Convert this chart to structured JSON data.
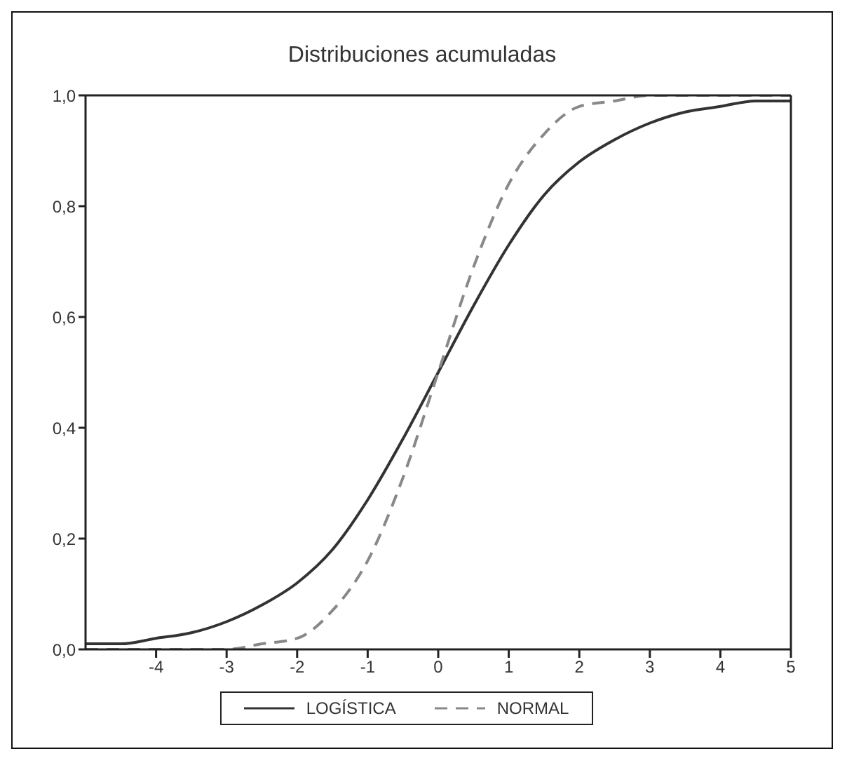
{
  "chart_data": {
    "type": "line",
    "title": "Distribuciones acumuladas",
    "x": [
      -5,
      -4.5,
      -4,
      -3.5,
      -3,
      -2.5,
      -2,
      -1.5,
      -1,
      -0.5,
      0,
      0.5,
      1,
      1.5,
      2,
      2.5,
      3,
      3.5,
      4,
      4.5,
      5
    ],
    "series": [
      {
        "name": "LOGÍSTICA",
        "color": "#333333",
        "line_style": "solid",
        "values": [
          0.01,
          0.01,
          0.02,
          0.03,
          0.05,
          0.08,
          0.12,
          0.18,
          0.27,
          0.38,
          0.5,
          0.62,
          0.73,
          0.82,
          0.88,
          0.92,
          0.95,
          0.97,
          0.98,
          0.99,
          0.99
        ]
      },
      {
        "name": "NORMAL",
        "color": "#888888",
        "line_style": "dashed",
        "values": [
          0,
          0,
          0,
          0,
          0,
          0.01,
          0.02,
          0.07,
          0.16,
          0.31,
          0.5,
          0.69,
          0.84,
          0.93,
          0.98,
          0.99,
          1,
          1,
          1,
          1,
          1
        ]
      }
    ],
    "xlim": [
      -5,
      5
    ],
    "xticks": [
      -4,
      -3,
      -2,
      -1,
      0,
      1,
      2,
      3,
      4,
      5
    ],
    "ylim": [
      0,
      1
    ],
    "yticks": [
      {
        "value": 0,
        "label": "0,0"
      },
      {
        "value": 0.2,
        "label": "0,2"
      },
      {
        "value": 0.4,
        "label": "0,4"
      },
      {
        "value": 0.6,
        "label": "0,6"
      },
      {
        "value": 0.8,
        "label": "0,8"
      },
      {
        "value": 1,
        "label": "1,0"
      }
    ],
    "grid": false,
    "legend": "bottom",
    "marker": "none"
  }
}
